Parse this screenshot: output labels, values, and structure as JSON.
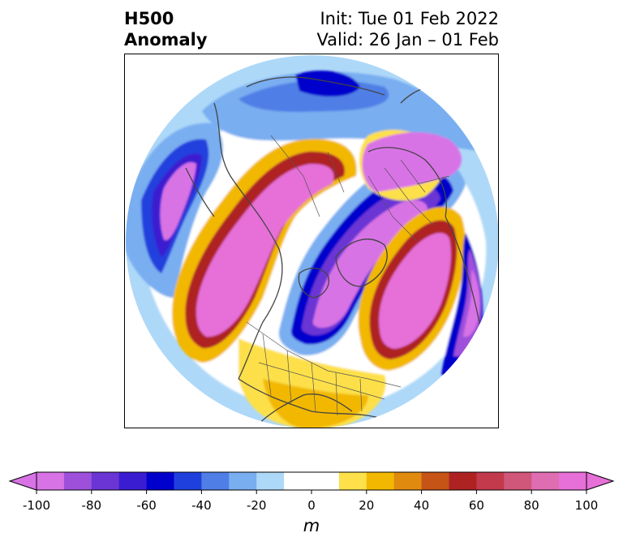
{
  "title": {
    "left_line1": "H500",
    "left_line2": "Anomaly",
    "right_line1": "Init: Tue 01 Feb 2022",
    "right_line2": "Valid: 26 Jan – 01 Feb"
  },
  "colorbar": {
    "unit": "m",
    "min": -100,
    "max": 100,
    "step": 10,
    "ticks": [
      "-100",
      "-80",
      "-60",
      "-40",
      "-20",
      "0",
      "20",
      "40",
      "60",
      "80",
      "100"
    ],
    "colors": [
      "#d873e6",
      "#9e50db",
      "#6a35d4",
      "#3a1dd0",
      "#0000cc",
      "#2040dd",
      "#4f7fe6",
      "#79aef0",
      "#aed8f8",
      "#ffffff",
      "#ffffff",
      "#fde04a",
      "#f2b800",
      "#e08a10",
      "#c65417",
      "#ae2222",
      "#c23a4c",
      "#d0567a",
      "#de6db2",
      "#e670d8"
    ],
    "extend": "both"
  },
  "map": {
    "projection": "north-polar-stereographic",
    "features": [
      "coastlines",
      "country borders",
      "state/province borders"
    ],
    "anomalies": [
      {
        "name": "Gulf of Alaska / NE Pacific",
        "sign": "negative",
        "peak_m": -100
      },
      {
        "name": "Northeast Pacific / western North America ridge",
        "sign": "positive",
        "peak_m": 100
      },
      {
        "name": "Arctic / Siberia ridge",
        "sign": "positive",
        "peak_m": 100
      },
      {
        "name": "Eastern North America / Hudson Bay trough",
        "sign": "negative",
        "peak_m": -100
      },
      {
        "name": "North Atlantic ridge",
        "sign": "positive",
        "peak_m": 100
      },
      {
        "name": "Eurasia trough",
        "sign": "negative",
        "peak_m": -100
      },
      {
        "name": "Eastern Europe / Ural trough",
        "sign": "negative",
        "peak_m": -80
      },
      {
        "name": "Southern US ridge",
        "sign": "positive",
        "peak_m": 40
      }
    ]
  }
}
